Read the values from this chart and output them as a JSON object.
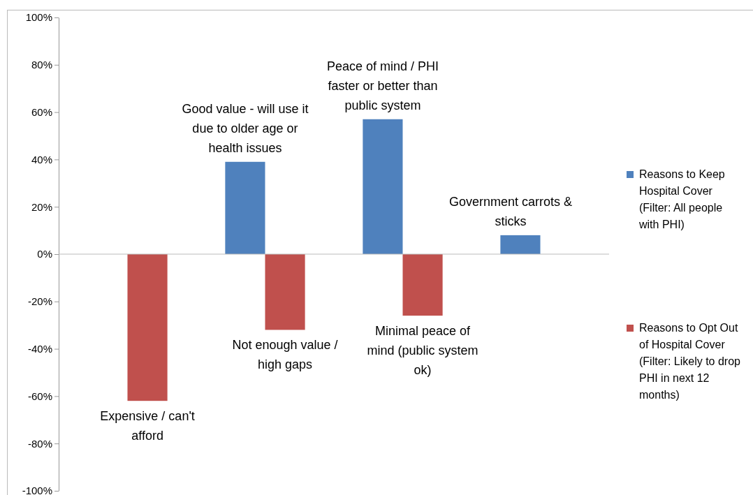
{
  "chart_data": {
    "type": "bar",
    "categories": [
      null,
      null,
      null,
      null
    ],
    "series": [
      {
        "name": "Reasons to Keep Hospital Cover (Filter: All people with PHI)",
        "color": "#4f81bd",
        "values": [
          null,
          39,
          57,
          8
        ]
      },
      {
        "name": "Reasons to Opt Out of Hospital Cover (Filter: Likely to drop PHI in next 12 months)",
        "color": "#c0504d",
        "values": [
          -62,
          -32,
          -26,
          null
        ]
      }
    ],
    "ylim": [
      -100,
      100
    ],
    "yticks": [
      {
        "value": -100,
        "label": "-100%"
      },
      {
        "value": -80,
        "label": "-80%"
      },
      {
        "value": -60,
        "label": "-60%"
      },
      {
        "value": -40,
        "label": "-40%"
      },
      {
        "value": -20,
        "label": "-20%"
      },
      {
        "value": 0,
        "label": "0%"
      },
      {
        "value": 20,
        "label": "20%"
      },
      {
        "value": 40,
        "label": "40%"
      },
      {
        "value": 60,
        "label": "60%"
      },
      {
        "value": 80,
        "label": "80%"
      },
      {
        "value": 100,
        "label": "100%"
      }
    ],
    "legend": "right",
    "annotations": [
      {
        "text": "Expensive / can't afford",
        "y": -62
      },
      {
        "text": "Good value - will use it due to older age or health issues",
        "y": 39
      },
      {
        "text": "Not enough value / high gaps",
        "y": -32
      },
      {
        "text": "Peace of mind / PHI faster or better than public system",
        "y": 57
      },
      {
        "text": "Minimal peace of mind (public system ok)",
        "y": -26
      },
      {
        "text": "Government carrots & sticks",
        "y": 8
      }
    ]
  }
}
